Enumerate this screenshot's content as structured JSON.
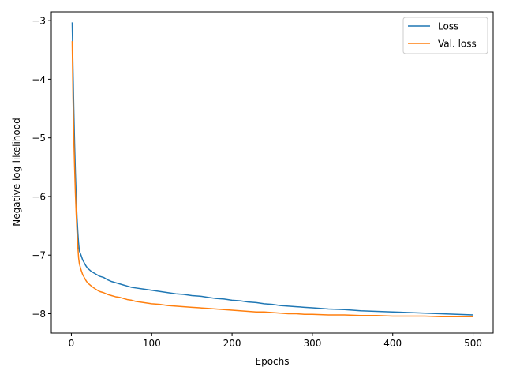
{
  "chart_data": {
    "type": "line",
    "xlabel": "Epochs",
    "ylabel": "Negative log-likelihood",
    "xlim": [
      -25,
      525
    ],
    "ylim": [
      -8.33,
      -2.85
    ],
    "xticks": [
      0,
      100,
      200,
      300,
      400,
      500
    ],
    "yticks": [
      -3,
      -4,
      -5,
      -6,
      -7,
      -8
    ],
    "xtick_labels": [
      "0",
      "100",
      "200",
      "300",
      "400",
      "500"
    ],
    "ytick_labels": [
      "−3",
      "−4",
      "−5",
      "−6",
      "−7",
      "−8"
    ],
    "grid": false,
    "legend_position": "top-right",
    "series": [
      {
        "name": "Loss",
        "color": "#1f77b4",
        "x": [
          1,
          2,
          3,
          4,
          5,
          6,
          7,
          8,
          9,
          10,
          12,
          14,
          16,
          18,
          20,
          25,
          30,
          35,
          40,
          45,
          50,
          55,
          60,
          65,
          70,
          75,
          80,
          90,
          100,
          110,
          120,
          130,
          140,
          150,
          160,
          170,
          180,
          190,
          200,
          210,
          220,
          230,
          240,
          250,
          260,
          270,
          280,
          290,
          300,
          320,
          340,
          360,
          380,
          400,
          420,
          440,
          460,
          480,
          500
        ],
        "y": [
          -3.03,
          -3.8,
          -4.5,
          -5.1,
          -5.6,
          -6.0,
          -6.35,
          -6.6,
          -6.8,
          -6.93,
          -7.0,
          -7.08,
          -7.13,
          -7.18,
          -7.22,
          -7.28,
          -7.32,
          -7.36,
          -7.38,
          -7.42,
          -7.45,
          -7.47,
          -7.49,
          -7.51,
          -7.53,
          -7.55,
          -7.56,
          -7.58,
          -7.6,
          -7.62,
          -7.64,
          -7.66,
          -7.67,
          -7.69,
          -7.7,
          -7.72,
          -7.74,
          -7.75,
          -7.77,
          -7.78,
          -7.8,
          -7.81,
          -7.83,
          -7.84,
          -7.86,
          -7.87,
          -7.88,
          -7.89,
          -7.9,
          -7.92,
          -7.93,
          -7.95,
          -7.96,
          -7.97,
          -7.98,
          -7.99,
          -8.0,
          -8.01,
          -8.02
        ]
      },
      {
        "name": "Val. loss",
        "color": "#ff7f0e",
        "x": [
          1,
          2,
          3,
          4,
          5,
          6,
          7,
          8,
          9,
          10,
          12,
          14,
          16,
          18,
          20,
          25,
          30,
          35,
          40,
          45,
          50,
          55,
          60,
          65,
          70,
          75,
          80,
          90,
          100,
          110,
          120,
          130,
          140,
          150,
          160,
          170,
          180,
          190,
          200,
          210,
          220,
          230,
          240,
          250,
          260,
          270,
          280,
          290,
          300,
          320,
          340,
          360,
          380,
          400,
          420,
          440,
          460,
          480,
          500
        ],
        "y": [
          -3.35,
          -4.3,
          -5.0,
          -5.5,
          -5.95,
          -6.3,
          -6.6,
          -6.85,
          -7.05,
          -7.15,
          -7.25,
          -7.33,
          -7.38,
          -7.43,
          -7.47,
          -7.53,
          -7.58,
          -7.62,
          -7.64,
          -7.67,
          -7.69,
          -7.71,
          -7.72,
          -7.74,
          -7.76,
          -7.77,
          -7.79,
          -7.81,
          -7.83,
          -7.84,
          -7.86,
          -7.87,
          -7.88,
          -7.89,
          -7.9,
          -7.91,
          -7.92,
          -7.93,
          -7.94,
          -7.95,
          -7.96,
          -7.97,
          -7.97,
          -7.98,
          -7.99,
          -8.0,
          -8.0,
          -8.01,
          -8.01,
          -8.02,
          -8.02,
          -8.03,
          -8.03,
          -8.04,
          -8.04,
          -8.04,
          -8.05,
          -8.05,
          -8.05
        ]
      }
    ]
  }
}
